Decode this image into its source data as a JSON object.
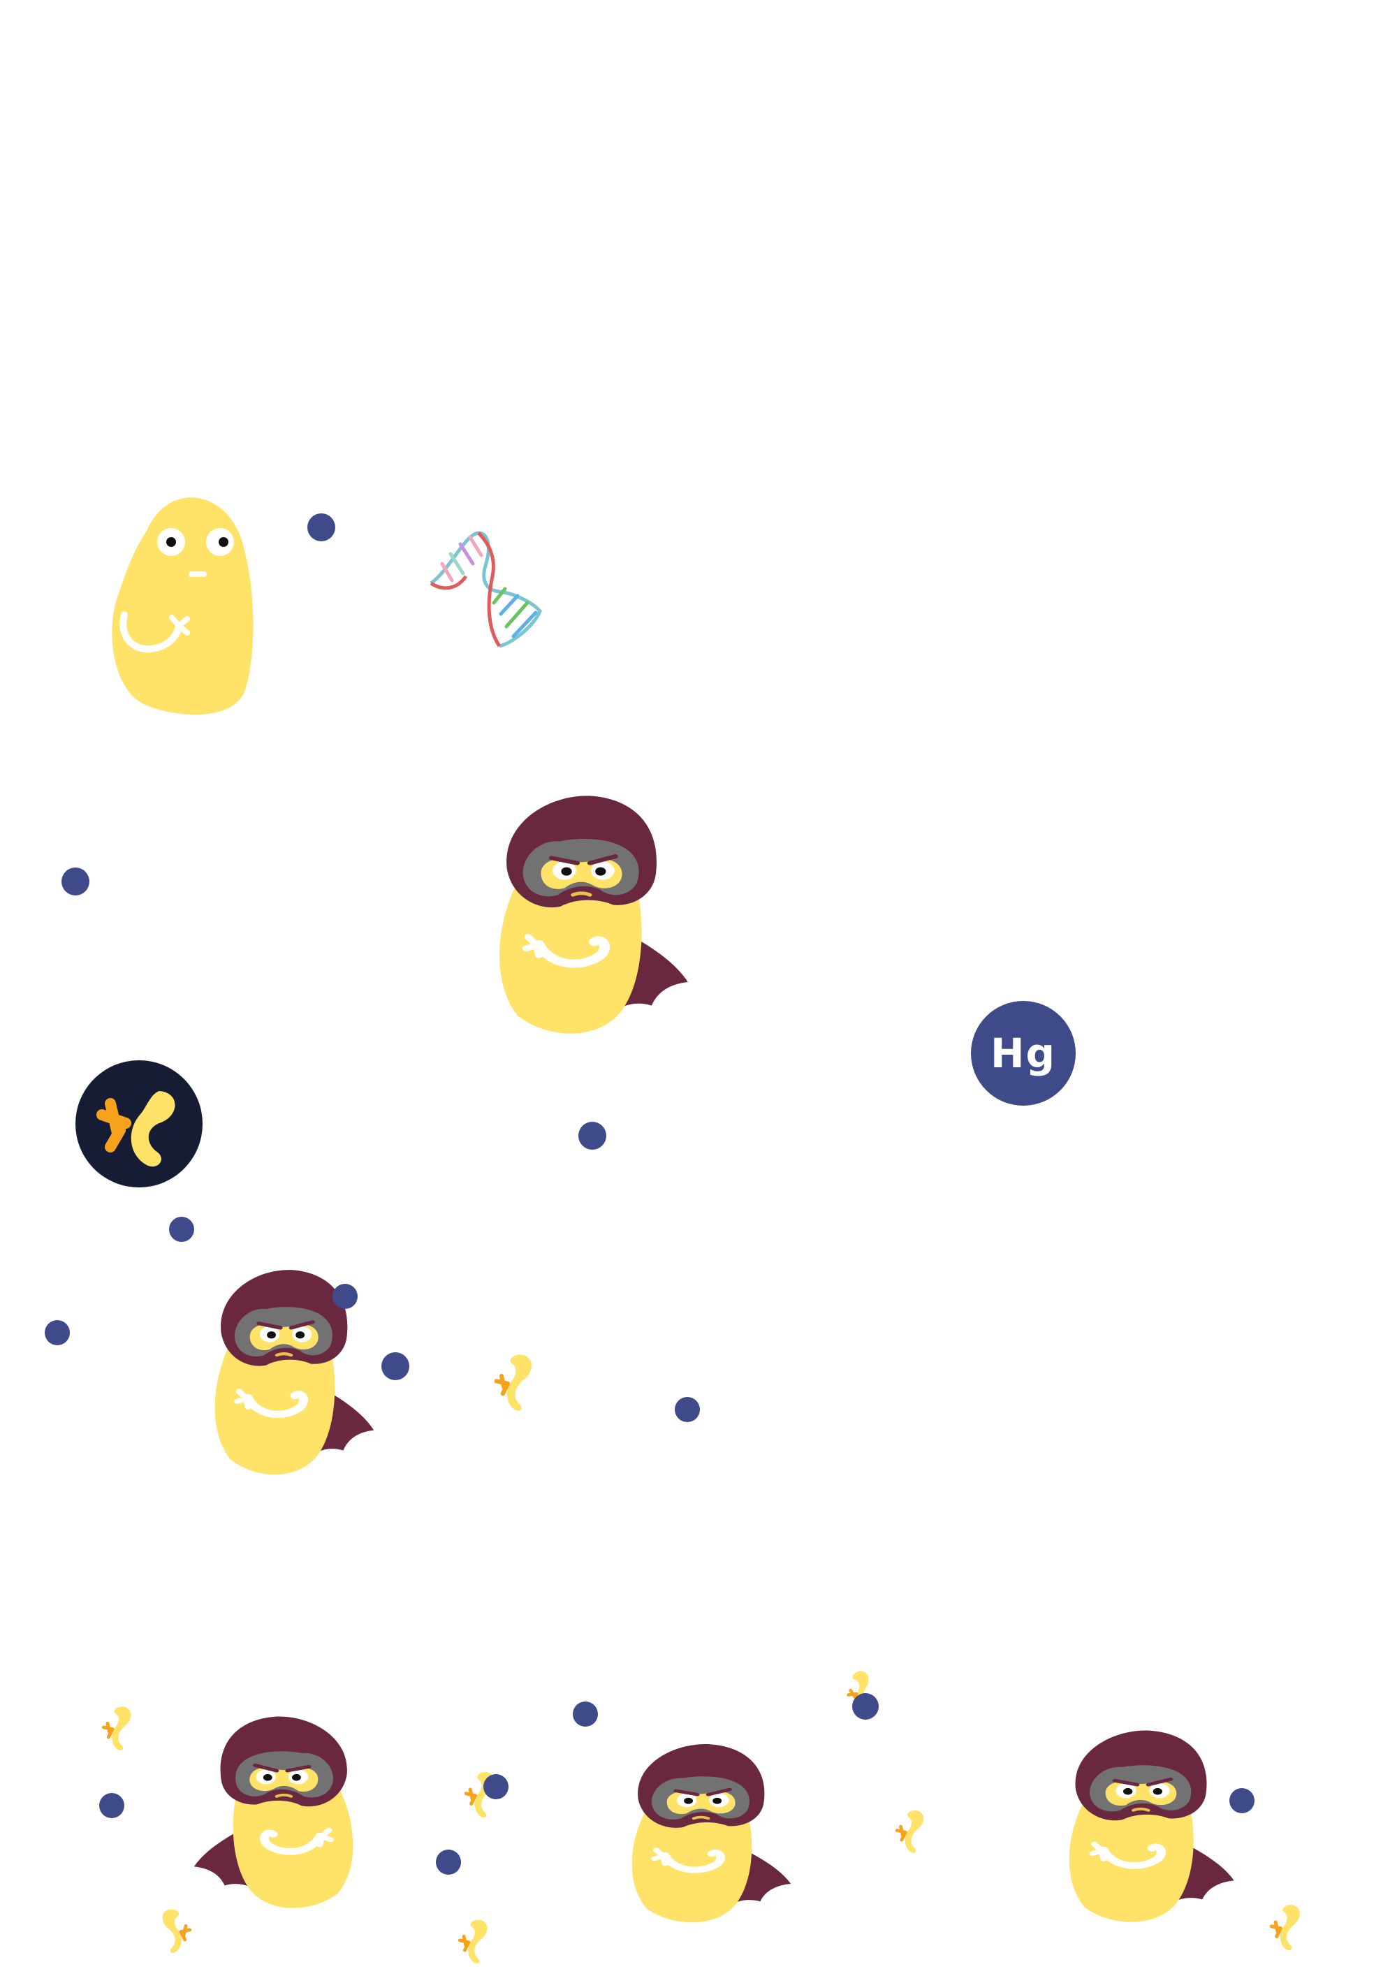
{
  "colors": {
    "background": "#ffffff",
    "bean_yellow": "#FFE268",
    "mask_maroon": "#6A2840",
    "mask_gray": "#727272",
    "dot_navy": "#3F4A8A",
    "logo_dark": "#161C33",
    "accent_orange": "#F7A21C"
  },
  "badge": {
    "symbol": "Hg"
  },
  "icons": [
    "plain-bean-character",
    "masked-caped-bean-character",
    "dna-helix-icon",
    "brand-logo-icon",
    "yellow-sprout-icon",
    "navy-dot"
  ]
}
